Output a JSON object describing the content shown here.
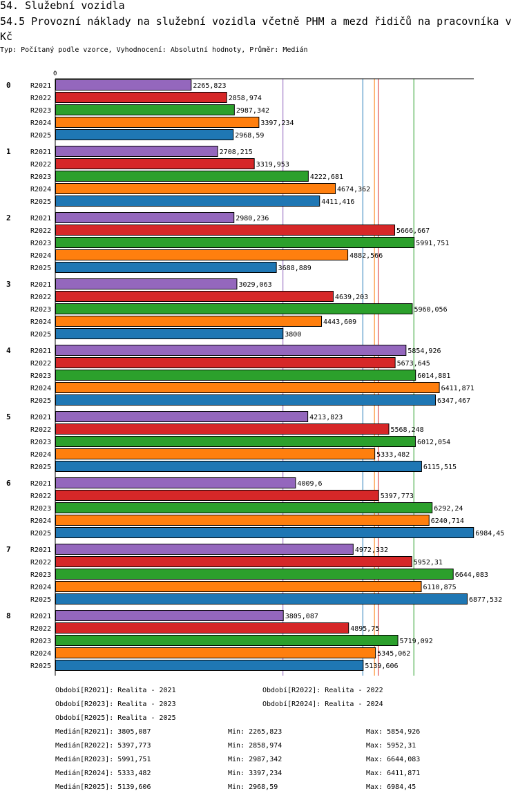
{
  "header": {
    "title": "54. Služební vozidla",
    "subtitle": "54.5 Provozní náklady na služební vozidla včetně PHM a mezd řidičů na pracovníka v Kč",
    "type_line": "Typ: Počítaný podle vzorce, Vyhodnocení: Absolutní hodnoty, Průměr: Medián"
  },
  "colors": {
    "R2021": "#9467bd",
    "R2022": "#d62728",
    "R2023": "#2ca02c",
    "R2024": "#ff7f0e",
    "R2025": "#1f77b4"
  },
  "chart_data": {
    "type": "bar",
    "orientation": "horizontal",
    "title": "54.5 Provozní náklady na služební vozidla včetně PHM a mezd řidičů na pracovníka v Kč",
    "axis_zero_label": "0",
    "xlim": [
      0,
      7400
    ],
    "categories": [
      "0",
      "1",
      "2",
      "3",
      "4",
      "5",
      "6",
      "7",
      "8"
    ],
    "series": [
      {
        "name": "R2021",
        "values": [
          2265.823,
          2708.215,
          2980.236,
          3029.063,
          5854.926,
          4213.823,
          4009.6,
          4972.332,
          3805.087
        ],
        "labels": [
          "2265,823",
          "2708,215",
          "2980,236",
          "3029,063",
          "5854,926",
          "4213,823",
          "4009,6",
          "4972,332",
          "3805,087"
        ]
      },
      {
        "name": "R2022",
        "values": [
          2858.974,
          3319.953,
          5666.667,
          4639.203,
          5673.645,
          5568.248,
          5397.773,
          5952.31,
          4895.75
        ],
        "labels": [
          "2858,974",
          "3319,953",
          "5666,667",
          "4639,203",
          "5673,645",
          "5568,248",
          "5397,773",
          "5952,31",
          "4895,75"
        ]
      },
      {
        "name": "R2023",
        "values": [
          2987.342,
          4222.681,
          5991.751,
          5960.056,
          6014.881,
          6012.054,
          6292.24,
          6644.083,
          5719.092
        ],
        "labels": [
          "2987,342",
          "4222,681",
          "5991,751",
          "5960,056",
          "6014,881",
          "6012,054",
          "6292,24",
          "6644,083",
          "5719,092"
        ]
      },
      {
        "name": "R2024",
        "values": [
          3397.234,
          4674.362,
          4882.566,
          4443.609,
          6411.871,
          5333.482,
          6240.714,
          6110.875,
          5345.062
        ],
        "labels": [
          "3397,234",
          "4674,362",
          "4882,566",
          "4443,609",
          "6411,871",
          "5333,482",
          "6240,714",
          "6110,875",
          "5345,062"
        ]
      },
      {
        "name": "R2025",
        "values": [
          2968.59,
          4411.416,
          3688.889,
          3800,
          6347.467,
          6115.515,
          6984.45,
          6877.532,
          5139.606
        ],
        "labels": [
          "2968,59",
          "4411,416",
          "3688,889",
          "3800",
          "6347,467",
          "6115,515",
          "6984,45",
          "6877,532",
          "5139,606"
        ]
      }
    ],
    "reference_lines": [
      {
        "series": "R2021",
        "kind": "median",
        "value": 3805.087
      },
      {
        "series": "R2022",
        "kind": "median",
        "value": 5397.773
      },
      {
        "series": "R2023",
        "kind": "median",
        "value": 5991.751
      },
      {
        "series": "R2024",
        "kind": "median",
        "value": 5333.482
      },
      {
        "series": "R2025",
        "kind": "median",
        "value": 5139.606
      }
    ]
  },
  "legend": {
    "periods": [
      "Období[R2021]: Realita - 2021",
      "Období[R2022]: Realita - 2022",
      "Období[R2023]: Realita - 2023",
      "Období[R2024]: Realita - 2024",
      "Období[R2025]: Realita - 2025"
    ],
    "stats": [
      {
        "median": "Medián[R2021]: 3805,087",
        "min": "Min: 2265,823",
        "max": "Max: 5854,926"
      },
      {
        "median": "Medián[R2022]: 5397,773",
        "min": "Min: 2858,974",
        "max": "Max: 5952,31"
      },
      {
        "median": "Medián[R2023]: 5991,751",
        "min": "Min: 2987,342",
        "max": "Max: 6644,083"
      },
      {
        "median": "Medián[R2024]: 5333,482",
        "min": "Min: 3397,234",
        "max": "Max: 6411,871"
      },
      {
        "median": "Medián[R2025]: 5139,606",
        "min": "Min: 2968,59",
        "max": "Max: 6984,45"
      }
    ]
  }
}
